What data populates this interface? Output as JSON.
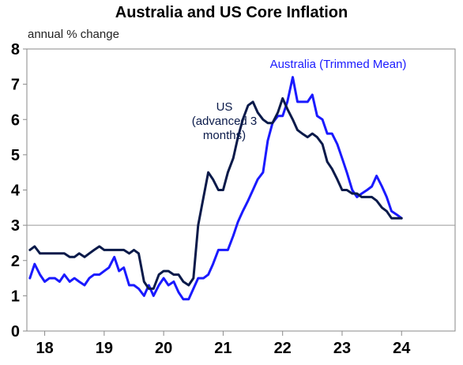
{
  "chart_data": {
    "type": "line",
    "title": "Australia and US Core Inflation",
    "ylabel": "annual % change",
    "xlabel": "",
    "ylim": [
      0,
      8
    ],
    "yticks": [
      0,
      1,
      2,
      3,
      4,
      5,
      6,
      7,
      8
    ],
    "xlim": [
      2017.7,
      2024.9
    ],
    "xticks": [
      {
        "label": "18",
        "value": 2018.0
      },
      {
        "label": "19",
        "value": 2019.0
      },
      {
        "label": "20",
        "value": 2020.0
      },
      {
        "label": "21",
        "value": 2021.0
      },
      {
        "label": "22",
        "value": 2022.0
      },
      {
        "label": "23",
        "value": 2023.0
      },
      {
        "label": "24",
        "value": 2024.0
      }
    ],
    "reference_line": {
      "y": 3,
      "color": "#999999"
    },
    "grid": false,
    "series": [
      {
        "name": "Australia (Trimmed Mean)",
        "color": "#1a1aff",
        "label_lines": [
          "Australia (Trimmed Mean)"
        ],
        "points": [
          [
            2017.75,
            1.5
          ],
          [
            2017.83,
            1.9
          ],
          [
            2017.92,
            1.6
          ],
          [
            2018.0,
            1.4
          ],
          [
            2018.08,
            1.5
          ],
          [
            2018.17,
            1.5
          ],
          [
            2018.25,
            1.4
          ],
          [
            2018.33,
            1.6
          ],
          [
            2018.42,
            1.4
          ],
          [
            2018.5,
            1.5
          ],
          [
            2018.58,
            1.4
          ],
          [
            2018.67,
            1.3
          ],
          [
            2018.75,
            1.5
          ],
          [
            2018.83,
            1.6
          ],
          [
            2018.92,
            1.6
          ],
          [
            2019.0,
            1.7
          ],
          [
            2019.08,
            1.8
          ],
          [
            2019.17,
            2.1
          ],
          [
            2019.25,
            1.7
          ],
          [
            2019.33,
            1.8
          ],
          [
            2019.42,
            1.3
          ],
          [
            2019.5,
            1.3
          ],
          [
            2019.58,
            1.2
          ],
          [
            2019.67,
            1.0
          ],
          [
            2019.75,
            1.3
          ],
          [
            2019.83,
            1.0
          ],
          [
            2019.92,
            1.3
          ],
          [
            2020.0,
            1.5
          ],
          [
            2020.08,
            1.3
          ],
          [
            2020.17,
            1.4
          ],
          [
            2020.25,
            1.1
          ],
          [
            2020.33,
            0.9
          ],
          [
            2020.42,
            0.9
          ],
          [
            2020.5,
            1.2
          ],
          [
            2020.58,
            1.5
          ],
          [
            2020.67,
            1.5
          ],
          [
            2020.75,
            1.6
          ],
          [
            2020.83,
            1.9
          ],
          [
            2020.92,
            2.3
          ],
          [
            2021.0,
            2.3
          ],
          [
            2021.08,
            2.3
          ],
          [
            2021.17,
            2.7
          ],
          [
            2021.25,
            3.1
          ],
          [
            2021.33,
            3.4
          ],
          [
            2021.42,
            3.7
          ],
          [
            2021.5,
            4.0
          ],
          [
            2021.58,
            4.3
          ],
          [
            2021.67,
            4.5
          ],
          [
            2021.75,
            5.4
          ],
          [
            2021.83,
            5.9
          ],
          [
            2021.92,
            6.1
          ],
          [
            2022.0,
            6.1
          ],
          [
            2022.08,
            6.5
          ],
          [
            2022.17,
            7.2
          ],
          [
            2022.25,
            6.5
          ],
          [
            2022.33,
            6.5
          ],
          [
            2022.42,
            6.5
          ],
          [
            2022.5,
            6.7
          ],
          [
            2022.58,
            6.1
          ],
          [
            2022.67,
            6.0
          ],
          [
            2022.75,
            5.6
          ],
          [
            2022.83,
            5.6
          ],
          [
            2022.92,
            5.3
          ],
          [
            2023.0,
            4.9
          ],
          [
            2023.08,
            4.5
          ],
          [
            2023.17,
            4.0
          ],
          [
            2023.25,
            3.8
          ],
          [
            2023.33,
            3.9
          ],
          [
            2023.42,
            4.0
          ],
          [
            2023.5,
            4.1
          ],
          [
            2023.58,
            4.4
          ],
          [
            2023.67,
            4.1
          ],
          [
            2023.75,
            3.8
          ],
          [
            2023.83,
            3.4
          ],
          [
            2023.92,
            3.3
          ],
          [
            2024.0,
            3.2
          ]
        ]
      },
      {
        "name": "US (advanced 3 months)",
        "color": "#0a1a4a",
        "label_lines": [
          "US",
          "(advanced 3",
          "months)"
        ],
        "points": [
          [
            2017.75,
            2.3
          ],
          [
            2017.83,
            2.4
          ],
          [
            2017.92,
            2.2
          ],
          [
            2018.0,
            2.2
          ],
          [
            2018.08,
            2.2
          ],
          [
            2018.17,
            2.2
          ],
          [
            2018.25,
            2.2
          ],
          [
            2018.33,
            2.2
          ],
          [
            2018.42,
            2.1
          ],
          [
            2018.5,
            2.1
          ],
          [
            2018.58,
            2.2
          ],
          [
            2018.67,
            2.1
          ],
          [
            2018.75,
            2.2
          ],
          [
            2018.83,
            2.3
          ],
          [
            2018.92,
            2.4
          ],
          [
            2019.0,
            2.3
          ],
          [
            2019.08,
            2.3
          ],
          [
            2019.17,
            2.3
          ],
          [
            2019.25,
            2.3
          ],
          [
            2019.33,
            2.3
          ],
          [
            2019.42,
            2.2
          ],
          [
            2019.5,
            2.3
          ],
          [
            2019.58,
            2.2
          ],
          [
            2019.67,
            1.4
          ],
          [
            2019.75,
            1.2
          ],
          [
            2019.83,
            1.2
          ],
          [
            2019.92,
            1.6
          ],
          [
            2020.0,
            1.7
          ],
          [
            2020.08,
            1.7
          ],
          [
            2020.17,
            1.6
          ],
          [
            2020.25,
            1.6
          ],
          [
            2020.33,
            1.4
          ],
          [
            2020.42,
            1.3
          ],
          [
            2020.5,
            1.5
          ],
          [
            2020.58,
            3.0
          ],
          [
            2020.67,
            3.8
          ],
          [
            2020.75,
            4.5
          ],
          [
            2020.83,
            4.3
          ],
          [
            2020.92,
            4.0
          ],
          [
            2021.0,
            4.0
          ],
          [
            2021.08,
            4.5
          ],
          [
            2021.17,
            4.9
          ],
          [
            2021.25,
            5.5
          ],
          [
            2021.33,
            6.0
          ],
          [
            2021.42,
            6.4
          ],
          [
            2021.5,
            6.5
          ],
          [
            2021.58,
            6.2
          ],
          [
            2021.67,
            6.0
          ],
          [
            2021.75,
            5.9
          ],
          [
            2021.83,
            5.9
          ],
          [
            2021.92,
            6.2
          ],
          [
            2022.0,
            6.6
          ],
          [
            2022.08,
            6.3
          ],
          [
            2022.17,
            6.0
          ],
          [
            2022.25,
            5.7
          ],
          [
            2022.33,
            5.6
          ],
          [
            2022.42,
            5.5
          ],
          [
            2022.5,
            5.6
          ],
          [
            2022.58,
            5.5
          ],
          [
            2022.67,
            5.3
          ],
          [
            2022.75,
            4.8
          ],
          [
            2022.83,
            4.6
          ],
          [
            2022.92,
            4.3
          ],
          [
            2023.0,
            4.0
          ],
          [
            2023.08,
            4.0
          ],
          [
            2023.17,
            3.9
          ],
          [
            2023.25,
            3.9
          ],
          [
            2023.33,
            3.8
          ],
          [
            2023.42,
            3.8
          ],
          [
            2023.5,
            3.8
          ],
          [
            2023.58,
            3.7
          ],
          [
            2023.67,
            3.5
          ],
          [
            2023.75,
            3.4
          ],
          [
            2023.83,
            3.2
          ],
          [
            2023.92,
            3.2
          ],
          [
            2024.0,
            3.2
          ]
        ]
      }
    ]
  }
}
